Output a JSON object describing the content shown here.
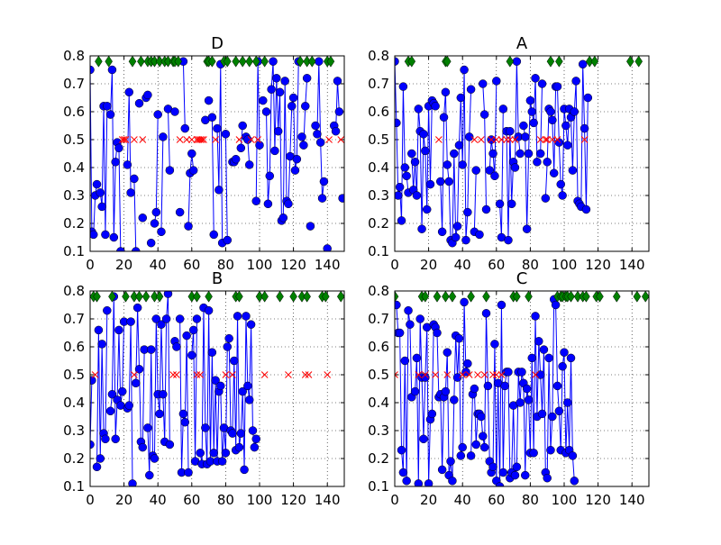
{
  "chart_data": [
    {
      "type": "line",
      "title": "D",
      "xlim": [
        0,
        150
      ],
      "ylim": [
        0.1,
        0.8
      ],
      "xticks": [
        0,
        20,
        40,
        60,
        80,
        100,
        120,
        140
      ],
      "yticks": [
        0.1,
        0.2,
        0.3,
        0.4,
        0.5,
        0.6,
        0.7,
        0.8
      ],
      "grid": true,
      "values": [
        0.75,
        0.17,
        0.16,
        0.3,
        0.34,
        null,
        0.31,
        0.26,
        0.62,
        0.16,
        0.62,
        null,
        0.59,
        0.75,
        0.15,
        0.42,
        0.49,
        0.47,
        0.1,
        null,
        null,
        null,
        0.41,
        0.67,
        0.31,
        null,
        0.36,
        0.1,
        null,
        0.63,
        null,
        0.22,
        null,
        0.65,
        0.66,
        null,
        0.13,
        null,
        0.2,
        0.24,
        0.59,
        null,
        0.17,
        0.51,
        null,
        null,
        0.61,
        0.39,
        null,
        null,
        0.6,
        null,
        null,
        0.24,
        null,
        0.78,
        0.54,
        null,
        0.19,
        0.38,
        0.45,
        0.39,
        null,
        null,
        null,
        null,
        null,
        null,
        0.57,
        null,
        0.64,
        null,
        0.58,
        0.16,
        null,
        0.54,
        0.32,
        0.77,
        0.13,
        null,
        0.52,
        0.14,
        null,
        null,
        0.42,
        0.42,
        0.43,
        null,
        null,
        0.47,
        0.55,
        null,
        0.51,
        0.5,
        0.41,
        null,
        null,
        null,
        0.28,
        0.78,
        0.48,
        null,
        0.64,
        null,
        0.6,
        0.27,
        0.37,
        0.68,
        0.78,
        0.46,
        0.72,
        0.53,
        0.67,
        0.21,
        0.22,
        0.71,
        0.28,
        0.27,
        0.44,
        0.62,
        0.65,
        0.39,
        0.43,
        0.78,
        null,
        0.51,
        0.48,
        0.62,
        0.72,
        null,
        0.19,
        null,
        null,
        0.55,
        0.52,
        0.78,
        0.49,
        0.29,
        0.35,
        null,
        0.11,
        null,
        null,
        null,
        0.55,
        0.53,
        0.71,
        0.6,
        null,
        0.29
      ],
      "green_x": [
        5,
        11,
        25,
        30,
        34,
        36,
        38,
        41,
        44,
        46,
        49,
        50,
        52,
        69,
        70,
        72,
        79,
        81,
        86,
        90,
        94,
        98,
        103,
        124,
        128,
        131,
        140,
        142
      ],
      "red_x": [
        19,
        20,
        21,
        26,
        31,
        53,
        57,
        60,
        63,
        64,
        65,
        66,
        67,
        74,
        88,
        95,
        99,
        141,
        148
      ]
    },
    {
      "type": "line",
      "title": "A",
      "xlim": [
        0,
        150
      ],
      "ylim": [
        0.1,
        0.8
      ],
      "xticks": [
        0,
        20,
        40,
        60,
        80,
        100,
        120,
        140
      ],
      "yticks": [
        0.1,
        0.2,
        0.3,
        0.4,
        0.5,
        0.6,
        0.7,
        0.8
      ],
      "grid": true,
      "values": [
        0.78,
        0.56,
        0.3,
        0.33,
        0.21,
        0.69,
        0.4,
        0.37,
        0.31,
        null,
        0.45,
        0.32,
        0.42,
        0.3,
        0.61,
        0.53,
        0.18,
        0.52,
        0.46,
        0.25,
        0.62,
        0.34,
        0.64,
        0.63,
        0.62,
        null,
        null,
        0.35,
        0.17,
        0.58,
        0.67,
        0.41,
        0.35,
        0.14,
        0.13,
        0.45,
        0.15,
        0.19,
        0.48,
        0.65,
        0.41,
        0.75,
        0.14,
        0.24,
        0.51,
        0.68,
        null,
        0.17,
        0.39,
        null,
        0.16,
        null,
        0.7,
        0.59,
        0.25,
        null,
        0.39,
        0.5,
        0.45,
        0.37,
        0.71,
        null,
        0.27,
        0.15,
        0.61,
        null,
        0.53,
        0.14,
        0.53,
        0.27,
        0.42,
        0.4,
        0.78,
        0.51,
        0.45,
        null,
        0.55,
        0.51,
        0.18,
        0.45,
        0.64,
        0.6,
        0.56,
        0.72,
        0.42,
        null,
        0.45,
        0.7,
        null,
        0.29,
        0.42,
        0.61,
        0.6,
        0.57,
        0.38,
        0.69,
        0.69,
        0.49,
        0.34,
        0.3,
        0.61,
        0.55,
        0.48,
        0.61,
        0.58,
        0.39,
        0.6,
        0.71,
        0.28,
        0.27,
        0.26,
        0.77,
        0.54,
        0.25,
        0.65
      ],
      "green_x": [
        8,
        10,
        30,
        31,
        68,
        92,
        97,
        115,
        118,
        139,
        144
      ],
      "red_x": [
        26,
        47,
        51,
        57,
        60,
        63,
        66,
        68,
        71,
        86,
        89,
        90,
        93,
        96,
        112
      ]
    },
    {
      "type": "line",
      "title": "B",
      "xlim": [
        0,
        150
      ],
      "ylim": [
        0.1,
        0.8
      ],
      "xticks": [
        0,
        20,
        40,
        60,
        80,
        100,
        120,
        140
      ],
      "yticks": [
        0.1,
        0.2,
        0.3,
        0.4,
        0.5,
        0.6,
        0.7,
        0.8
      ],
      "grid": true,
      "values": [
        0.25,
        0.48,
        null,
        null,
        0.17,
        0.66,
        0.2,
        0.61,
        0.29,
        0.27,
        0.73,
        null,
        0.37,
        0.43,
        0.78,
        0.27,
        0.41,
        0.66,
        0.39,
        0.44,
        0.69,
        null,
        0.38,
        0.39,
        0.69,
        0.11,
        null,
        0.47,
        0.74,
        0.52,
        0.26,
        0.24,
        0.59,
        null,
        0.31,
        0.14,
        0.59,
        0.21,
        0.2,
        0.7,
        0.43,
        0.36,
        0.68,
        0.43,
        0.26,
        0.7,
        0.79,
        0.25,
        null,
        null,
        0.62,
        0.6,
        null,
        0.7,
        0.15,
        0.36,
        0.33,
        0.64,
        0.15,
        null,
        0.57,
        0.66,
        0.19,
        0.7,
        null,
        0.22,
        0.18,
        0.74,
        0.31,
        0.18,
        0.73,
        0.19,
        0.58,
        0.22,
        0.48,
        0.19,
        0.44,
        0.46,
        0.19,
        0.31,
        0.22,
        0.6,
        0.63,
        0.3,
        0.29,
        0.55,
        0.23,
        0.71,
        0.24,
        0.29,
        0.44,
        0.16,
        0.71,
        0.46,
        0.41,
        0.68,
        0.3,
        0.24,
        0.27
      ],
      "green_x": [
        2,
        4,
        13,
        21,
        26,
        29,
        33,
        38,
        41,
        60,
        63,
        70,
        86,
        88,
        100,
        103,
        112,
        120,
        125,
        128,
        137,
        139,
        148
      ],
      "red_x": [
        3,
        26,
        49,
        51,
        63,
        65,
        80,
        84,
        103,
        117,
        127,
        129,
        140
      ]
    },
    {
      "type": "line",
      "title": "C",
      "xlim": [
        0,
        150
      ],
      "ylim": [
        0.1,
        0.8
      ],
      "xticks": [
        0,
        20,
        40,
        60,
        80,
        100,
        120,
        140
      ],
      "yticks": [
        0.1,
        0.2,
        0.3,
        0.4,
        0.5,
        0.6,
        0.7,
        0.8
      ],
      "grid": true,
      "values": [
        null,
        0.75,
        0.65,
        0.65,
        0.23,
        0.15,
        0.55,
        0.12,
        0.73,
        0.68,
        0.42,
        null,
        0.44,
        0.56,
        0.11,
        0.7,
        0.49,
        0.27,
        0.49,
        0.67,
        0.11,
        0.34,
        0.36,
        0.68,
        0.67,
        0.65,
        0.42,
        0.43,
        0.16,
        0.42,
        0.44,
        0.58,
        0.14,
        0.19,
        0.12,
        0.41,
        0.64,
        0.49,
        0.63,
        0.21,
        0.24,
        0.76,
        0.51,
        0.54,
        null,
        0.21,
        0.43,
        0.45,
        0.25,
        0.36,
        0.36,
        0.35,
        0.28,
        0.24,
        0.72,
        0.46,
        0.19,
        0.15,
        0.17,
        0.61,
        0.12,
        0.47,
        0.1,
        0.75,
        0.15,
        0.46,
        0.51,
        0.51,
        0.13,
        0.15,
        0.39,
        0.14,
        0.17,
        0.51,
        0.4,
        0.51,
        0.47,
        0.14,
        0.45,
        0.41,
        0.22,
        0.56,
        0.22,
        0.71,
        0.35,
        0.62,
        0.5,
        0.36,
        0.59,
        0.15,
        0.13,
        0.56,
        0.23,
        0.35,
        0.77,
        0.75,
        0.46,
        0.37,
        0.23,
        0.53,
        0.58,
        0.22,
        0.4,
        0.23,
        0.56,
        0.21,
        0.12
      ],
      "green_x": [
        0,
        16,
        18,
        25,
        30,
        34,
        45,
        54,
        70,
        72,
        79,
        96,
        98,
        99,
        101,
        102,
        104,
        108,
        111,
        113,
        119,
        121,
        131,
        143,
        148
      ],
      "red_x": [
        0,
        14,
        18,
        24,
        31,
        40,
        44,
        49,
        53,
        58,
        60,
        63,
        83
      ]
    }
  ]
}
